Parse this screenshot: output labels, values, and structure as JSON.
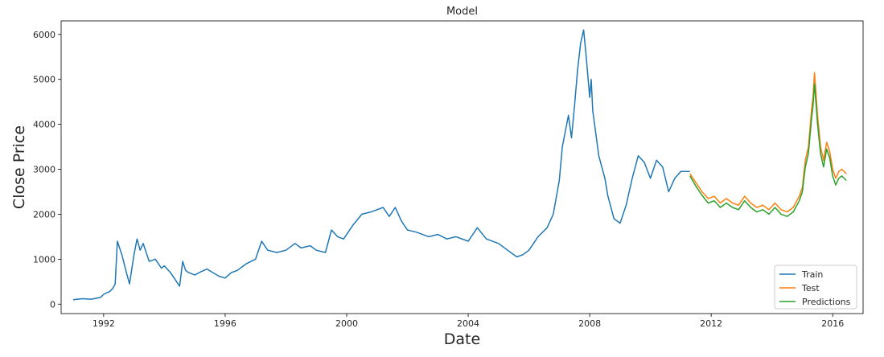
{
  "chart_data": {
    "type": "line",
    "title": "Model",
    "xlabel": "Date",
    "ylabel": "Close Price",
    "xlim": [
      1990.6,
      2017.0
    ],
    "ylim": [
      -210,
      6300
    ],
    "x_ticks": [
      1992,
      1996,
      2000,
      2004,
      2008,
      2012,
      2016
    ],
    "x_tick_labels": [
      "1992",
      "1996",
      "2000",
      "2004",
      "2008",
      "2012",
      "2016"
    ],
    "y_ticks": [
      0,
      1000,
      2000,
      3000,
      4000,
      5000,
      6000
    ],
    "y_tick_labels": [
      "0",
      "1000",
      "2000",
      "3000",
      "4000",
      "5000",
      "6000"
    ],
    "grid": false,
    "legend_position": "lower-right",
    "series": [
      {
        "name": "Train",
        "color": "#1f77b4",
        "x": [
          1991.0,
          1991.3,
          1991.6,
          1991.9,
          1992.0,
          1992.2,
          1992.3,
          1992.38,
          1992.45,
          1992.6,
          1992.75,
          1992.85,
          1993.0,
          1993.1,
          1993.2,
          1993.3,
          1993.5,
          1993.7,
          1993.9,
          1994.0,
          1994.2,
          1994.4,
          1994.5,
          1994.6,
          1994.7,
          1994.8,
          1995.0,
          1995.2,
          1995.4,
          1995.6,
          1995.8,
          1996.0,
          1996.2,
          1996.4,
          1996.7,
          1997.0,
          1997.2,
          1997.4,
          1997.7,
          1998.0,
          1998.3,
          1998.5,
          1998.8,
          1999.0,
          1999.3,
          1999.5,
          1999.7,
          1999.9,
          2000.2,
          2000.5,
          2000.8,
          2001.0,
          2001.2,
          2001.4,
          2001.6,
          2001.8,
          2002.0,
          2002.3,
          2002.7,
          2003.0,
          2003.3,
          2003.6,
          2004.0,
          2004.3,
          2004.6,
          2005.0,
          2005.3,
          2005.6,
          2005.8,
          2006.0,
          2006.3,
          2006.6,
          2006.8,
          2007.0,
          2007.1,
          2007.3,
          2007.4,
          2007.5,
          2007.6,
          2007.7,
          2007.8,
          2007.9,
          2008.0,
          2008.05,
          2008.1,
          2008.2,
          2008.3,
          2008.5,
          2008.6,
          2008.8,
          2009.0,
          2009.2,
          2009.4,
          2009.6,
          2009.8,
          2010.0,
          2010.2,
          2010.4,
          2010.6,
          2010.8,
          2011.0,
          2011.3
        ],
        "y": [
          100,
          120,
          110,
          150,
          220,
          280,
          350,
          450,
          1400,
          1100,
          700,
          450,
          1100,
          1450,
          1200,
          1350,
          950,
          1000,
          800,
          850,
          700,
          500,
          400,
          950,
          750,
          700,
          650,
          720,
          780,
          700,
          620,
          580,
          700,
          750,
          900,
          1000,
          1400,
          1200,
          1150,
          1200,
          1350,
          1250,
          1300,
          1200,
          1150,
          1650,
          1500,
          1450,
          1750,
          2000,
          2050,
          2100,
          2150,
          1950,
          2150,
          1850,
          1650,
          1600,
          1500,
          1550,
          1450,
          1500,
          1400,
          1700,
          1450,
          1350,
          1200,
          1050,
          1100,
          1200,
          1500,
          1700,
          2000,
          2750,
          3500,
          4200,
          3700,
          4400,
          5200,
          5800,
          6100,
          5400,
          4600,
          5000,
          4300,
          3800,
          3300,
          2800,
          2400,
          1900,
          1800,
          2200,
          2800,
          3300,
          3150,
          2800,
          3200,
          3050,
          2500,
          2800,
          2950,
          2950
        ]
      },
      {
        "name": "Test",
        "color": "#ff7f0e",
        "x": [
          2011.3,
          2011.5,
          2011.7,
          2011.9,
          2012.1,
          2012.3,
          2012.5,
          2012.7,
          2012.9,
          2013.1,
          2013.3,
          2013.5,
          2013.7,
          2013.9,
          2014.1,
          2014.3,
          2014.5,
          2014.7,
          2014.9,
          2015.0,
          2015.1,
          2015.2,
          2015.3,
          2015.35,
          2015.4,
          2015.5,
          2015.6,
          2015.7,
          2015.8,
          2015.9,
          2016.0,
          2016.1,
          2016.2,
          2016.3,
          2016.45
        ],
        "y": [
          2900,
          2700,
          2500,
          2350,
          2400,
          2250,
          2350,
          2250,
          2200,
          2400,
          2250,
          2150,
          2200,
          2100,
          2250,
          2100,
          2050,
          2150,
          2400,
          2600,
          3200,
          3500,
          4300,
          4600,
          5150,
          4200,
          3500,
          3200,
          3600,
          3400,
          3000,
          2800,
          2950,
          3000,
          2900
        ]
      },
      {
        "name": "Predictions",
        "color": "#2ca02c",
        "x": [
          2011.3,
          2011.5,
          2011.7,
          2011.9,
          2012.1,
          2012.3,
          2012.5,
          2012.7,
          2012.9,
          2013.1,
          2013.3,
          2013.5,
          2013.7,
          2013.9,
          2014.1,
          2014.3,
          2014.5,
          2014.7,
          2014.9,
          2015.0,
          2015.1,
          2015.2,
          2015.3,
          2015.35,
          2015.4,
          2015.5,
          2015.6,
          2015.7,
          2015.8,
          2015.9,
          2016.0,
          2016.1,
          2016.2,
          2016.3,
          2016.45
        ],
        "y": [
          2850,
          2620,
          2420,
          2250,
          2300,
          2150,
          2250,
          2150,
          2100,
          2300,
          2150,
          2050,
          2100,
          2000,
          2150,
          2000,
          1950,
          2050,
          2300,
          2500,
          3050,
          3350,
          4100,
          4400,
          4900,
          4000,
          3350,
          3050,
          3450,
          3250,
          2850,
          2650,
          2800,
          2850,
          2750
        ]
      }
    ]
  }
}
